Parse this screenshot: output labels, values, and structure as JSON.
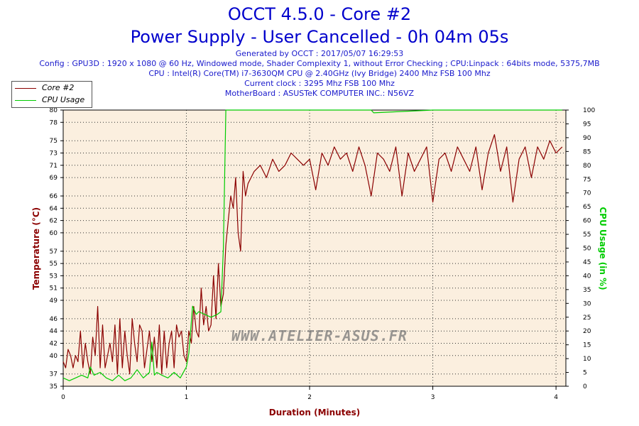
{
  "header": {
    "title_line1": "OCCT 4.5.0 - Core #2",
    "title_line2": "Power Supply - User Cancelled - 0h 04m 05s",
    "generated": "Generated by OCCT : 2017/05/07 16:29:53",
    "config": "Config : GPU3D : 1920 x 1080 @ 60 Hz, Windowed mode, Shader Complexity 1, without Error Checking ; CPU:Linpack : 64bits mode, 5375,7MB",
    "cpu": "CPU : Intel(R) Core(TM) i7-3630QM CPU @ 2.40GHz (Ivy Bridge) 2400 Mhz FSB 100 Mhz",
    "clock": "Current clock : 3295 Mhz FSB 100 Mhz",
    "motherboard": "MotherBoard : ASUSTeK COMPUTER INC.: N56VZ"
  },
  "watermark": "WWW.ATELIER-ASUS.FR",
  "colors": {
    "temperature": "#8b0000",
    "cpu_usage": "#00cc00",
    "plot_bg": "#fbefdf",
    "title": "#0000cc"
  },
  "chart_data": {
    "type": "line",
    "xlabel": "Duration (Minutes)",
    "ylabel_left": "Temperature (°C)",
    "ylabel_right": "CPU Usage (in %)",
    "xlim": [
      0,
      4.08
    ],
    "x_ticks": [
      0,
      1,
      2,
      3,
      4
    ],
    "ylim_left": [
      35,
      80
    ],
    "y_ticks_left": [
      35,
      37,
      40,
      42,
      44,
      46,
      49,
      51,
      53,
      55,
      57,
      60,
      62,
      64,
      66,
      69,
      71,
      73,
      75,
      78,
      80
    ],
    "ylim_right": [
      0,
      100
    ],
    "y_ticks_right": [
      0,
      5,
      10,
      15,
      20,
      25,
      30,
      35,
      40,
      45,
      50,
      55,
      60,
      65,
      70,
      75,
      80,
      85,
      90,
      95,
      100
    ],
    "grid": true,
    "legend_position": "top-left",
    "series": [
      {
        "name": "Core #2",
        "axis": "left",
        "x": [
          0,
          0.02,
          0.04,
          0.06,
          0.08,
          0.1,
          0.12,
          0.14,
          0.16,
          0.18,
          0.2,
          0.22,
          0.24,
          0.26,
          0.28,
          0.3,
          0.32,
          0.34,
          0.36,
          0.38,
          0.4,
          0.42,
          0.44,
          0.46,
          0.48,
          0.5,
          0.52,
          0.54,
          0.56,
          0.58,
          0.6,
          0.62,
          0.64,
          0.66,
          0.68,
          0.7,
          0.72,
          0.74,
          0.76,
          0.78,
          0.8,
          0.82,
          0.84,
          0.86,
          0.88,
          0.9,
          0.92,
          0.94,
          0.96,
          0.98,
          1.0,
          1.02,
          1.04,
          1.06,
          1.08,
          1.1,
          1.12,
          1.14,
          1.16,
          1.18,
          1.2,
          1.22,
          1.24,
          1.26,
          1.28,
          1.3,
          1.32,
          1.34,
          1.36,
          1.38,
          1.4,
          1.42,
          1.44,
          1.46,
          1.48,
          1.5,
          1.55,
          1.6,
          1.65,
          1.7,
          1.75,
          1.8,
          1.85,
          1.9,
          1.95,
          2.0,
          2.05,
          2.1,
          2.15,
          2.2,
          2.25,
          2.3,
          2.35,
          2.4,
          2.45,
          2.5,
          2.55,
          2.6,
          2.65,
          2.7,
          2.75,
          2.8,
          2.85,
          2.9,
          2.95,
          3.0,
          3.05,
          3.1,
          3.15,
          3.2,
          3.25,
          3.3,
          3.35,
          3.4,
          3.45,
          3.5,
          3.55,
          3.6,
          3.65,
          3.7,
          3.75,
          3.8,
          3.85,
          3.9,
          3.95,
          4.0,
          4.05
        ],
        "values": [
          39,
          38,
          41,
          40,
          38,
          40,
          39,
          44,
          38,
          42,
          39,
          37,
          43,
          40,
          48,
          38,
          45,
          38,
          40,
          42,
          39,
          45,
          37,
          46,
          38,
          44,
          40,
          37,
          46,
          42,
          39,
          45,
          44,
          38,
          41,
          44,
          39,
          43,
          38,
          45,
          37,
          44,
          38,
          42,
          44,
          38,
          45,
          43,
          44,
          40,
          39,
          44,
          42,
          48,
          44,
          43,
          51,
          45,
          48,
          44,
          45,
          53,
          46,
          55,
          48,
          50,
          58,
          62,
          66,
          64,
          69,
          60,
          57,
          70,
          66,
          68,
          70,
          71,
          69,
          72,
          70,
          71,
          73,
          72,
          71,
          72,
          67,
          73,
          71,
          74,
          72,
          73,
          70,
          74,
          71,
          66,
          73,
          72,
          70,
          74,
          66,
          73,
          70,
          72,
          74,
          65,
          72,
          73,
          70,
          74,
          72,
          70,
          74,
          67,
          73,
          76,
          70,
          74,
          65,
          72,
          74,
          69,
          74,
          72,
          75,
          73,
          74
        ]
      },
      {
        "name": "CPU Usage",
        "axis": "right",
        "x": [
          0,
          0.05,
          0.1,
          0.15,
          0.2,
          0.22,
          0.25,
          0.3,
          0.35,
          0.4,
          0.45,
          0.5,
          0.55,
          0.6,
          0.65,
          0.7,
          0.72,
          0.74,
          0.76,
          0.8,
          0.85,
          0.9,
          0.95,
          1.0,
          1.02,
          1.05,
          1.08,
          1.1,
          1.15,
          1.2,
          1.25,
          1.28,
          1.3,
          1.32,
          1.35,
          1.5,
          2.0,
          2.5,
          2.52,
          3.0,
          3.5,
          4.05
        ],
        "values": [
          3,
          2,
          3,
          4,
          3,
          7,
          4,
          5,
          3,
          2,
          4,
          2,
          3,
          6,
          3,
          5,
          16,
          4,
          5,
          4,
          3,
          5,
          3,
          7,
          12,
          29,
          26,
          27,
          26,
          25,
          26,
          27,
          50,
          100,
          100,
          100,
          100,
          100,
          99,
          100,
          100,
          100
        ]
      }
    ]
  }
}
